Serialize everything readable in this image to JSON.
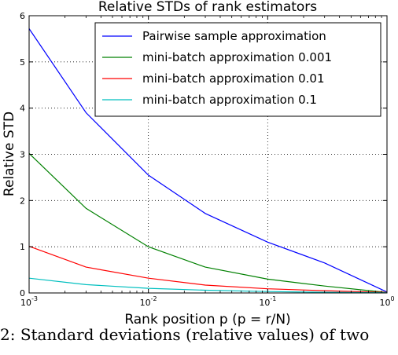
{
  "chart_data": {
    "type": "line",
    "title": "Relative STDs of rank estimators",
    "xlabel": "Rank position p (p = r/N)",
    "ylabel": "Relative STD",
    "xscale": "log",
    "xlim": [
      0.001,
      1
    ],
    "ylim": [
      0,
      6
    ],
    "grid": true,
    "legend_position": "top-right",
    "x_ticks": [
      {
        "base": "10",
        "exp": "-3"
      },
      {
        "base": "10",
        "exp": "-2"
      },
      {
        "base": "10",
        "exp": "-1"
      },
      {
        "base": "10",
        "exp": "0"
      }
    ],
    "y_ticks": [
      "0",
      "1",
      "2",
      "3",
      "4",
      "5",
      "6"
    ],
    "x": [
      0.001,
      0.003,
      0.01,
      0.03,
      0.1,
      0.3,
      1
    ],
    "series": [
      {
        "name": "Pairwise sample approximation",
        "color": "#0000ff",
        "values": [
          5.72,
          3.9,
          2.55,
          1.72,
          1.1,
          0.65,
          0.02
        ]
      },
      {
        "name": "mini-batch approximation 0.001",
        "color": "#008000",
        "values": [
          3.02,
          1.83,
          1.0,
          0.56,
          0.3,
          0.15,
          0.01
        ]
      },
      {
        "name": "mini-batch approximation 0.01",
        "color": "#ff0000",
        "values": [
          1.01,
          0.56,
          0.32,
          0.17,
          0.09,
          0.05,
          0.01
        ]
      },
      {
        "name": "mini-batch approximation 0.1",
        "color": "#00bfbf",
        "values": [
          0.32,
          0.18,
          0.1,
          0.06,
          0.03,
          0.015,
          0.005
        ]
      }
    ]
  },
  "caption": "2: Standard deviations (relative values) of two"
}
